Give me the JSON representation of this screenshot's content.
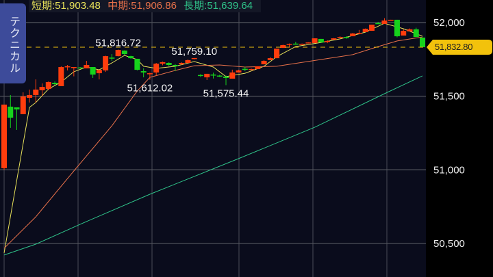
{
  "side_tab": {
    "label": "テクニカル"
  },
  "legend": {
    "short": {
      "label": "短期:51,903.48",
      "color": "#e8e25a"
    },
    "mid": {
      "label": "中期:51,906.86",
      "color": "#e8714a"
    },
    "long": {
      "label": "長期:51,639.64",
      "color": "#2fc48a"
    }
  },
  "last_price": {
    "label": "51,832.80",
    "value": 51832.8,
    "color": "#f2c20c"
  },
  "chart_data": {
    "type": "candlestick",
    "up_color": "#ff3d0d",
    "down_color": "#16d21c",
    "grid": true,
    "y_axis": {
      "position": "right",
      "ticks": [
        52000,
        51500,
        51000,
        50500
      ],
      "tick_labels": [
        "52,000",
        "51,500",
        "51,000",
        "50,500"
      ]
    },
    "candles": [
      {
        "o": 51011,
        "h": 51443,
        "l": 51001,
        "c": 51443
      },
      {
        "o": 51429,
        "h": 51508,
        "l": 51285,
        "c": 51354
      },
      {
        "o": 51424,
        "h": 51424,
        "l": 51271,
        "c": 51410
      },
      {
        "o": 51378,
        "h": 51526,
        "l": 51378,
        "c": 51498
      },
      {
        "o": 51489,
        "h": 51545,
        "l": 51457,
        "c": 51508
      },
      {
        "o": 51508,
        "h": 51614,
        "l": 51457,
        "c": 51545
      },
      {
        "o": 51540,
        "h": 51587,
        "l": 51500,
        "c": 51563
      },
      {
        "o": 51549,
        "h": 51600,
        "l": 51540,
        "c": 51596
      },
      {
        "o": 51591,
        "h": 51600,
        "l": 51575,
        "c": 51582
      },
      {
        "o": 51568,
        "h": 51703,
        "l": 51568,
        "c": 51698
      },
      {
        "o": 51700,
        "h": 51712,
        "l": 51675,
        "c": 51703
      },
      {
        "o": 51696,
        "h": 51698,
        "l": 51635,
        "c": 51698
      },
      {
        "o": 51695,
        "h": 51698,
        "l": 51690,
        "c": 51692
      },
      {
        "o": 51689,
        "h": 51740,
        "l": 51689,
        "c": 51712
      },
      {
        "o": 51698,
        "h": 51698,
        "l": 51624,
        "c": 51647
      },
      {
        "o": 51656,
        "h": 51679,
        "l": 51614,
        "c": 51679
      },
      {
        "o": 51675,
        "h": 51775,
        "l": 51665,
        "c": 51772
      },
      {
        "o": 51762,
        "h": 51786,
        "l": 51740,
        "c": 51758
      },
      {
        "o": 51772,
        "h": 51817,
        "l": 51770,
        "c": 51814
      },
      {
        "o": 51810,
        "h": 51812,
        "l": 51780,
        "c": 51786
      },
      {
        "o": 51772,
        "h": 51775,
        "l": 51754,
        "c": 51758
      },
      {
        "o": 51754,
        "h": 51754,
        "l": 51675,
        "c": 51679
      },
      {
        "o": 51670,
        "h": 51689,
        "l": 51628,
        "c": 51661
      },
      {
        "o": 51652,
        "h": 51660,
        "l": 51612,
        "c": 51656
      },
      {
        "o": 51661,
        "h": 51726,
        "l": 51640,
        "c": 51721
      },
      {
        "o": 51721,
        "h": 51735,
        "l": 51710,
        "c": 51731
      },
      {
        "o": 51726,
        "h": 51731,
        "l": 51705,
        "c": 51712
      },
      {
        "o": 51712,
        "h": 51717,
        "l": 51670,
        "c": 51710
      },
      {
        "o": 51717,
        "h": 51730,
        "l": 51712,
        "c": 51726
      },
      {
        "o": 51726,
        "h": 51750,
        "l": 51722,
        "c": 51745
      },
      {
        "o": 51754,
        "h": 51759,
        "l": 51750,
        "c": 51759
      },
      {
        "o": 51644,
        "h": 51650,
        "l": 51630,
        "c": 51640
      },
      {
        "o": 51628,
        "h": 51652,
        "l": 51610,
        "c": 51652
      },
      {
        "o": 51647,
        "h": 51660,
        "l": 51620,
        "c": 51642
      },
      {
        "o": 51640,
        "h": 51645,
        "l": 51630,
        "c": 51636
      },
      {
        "o": 51633,
        "h": 51640,
        "l": 51575,
        "c": 51624
      },
      {
        "o": 51619,
        "h": 51680,
        "l": 51619,
        "c": 51661
      },
      {
        "o": 51661,
        "h": 51680,
        "l": 51661,
        "c": 51675
      },
      {
        "o": 51686,
        "h": 51700,
        "l": 51670,
        "c": 51683
      },
      {
        "o": 51679,
        "h": 51688,
        "l": 51679,
        "c": 51684
      },
      {
        "o": 51684,
        "h": 51703,
        "l": 51684,
        "c": 51703
      },
      {
        "o": 51717,
        "h": 51745,
        "l": 51717,
        "c": 51740
      },
      {
        "o": 51745,
        "h": 51765,
        "l": 51745,
        "c": 51758
      },
      {
        "o": 51758,
        "h": 51823,
        "l": 51758,
        "c": 51823
      },
      {
        "o": 51828,
        "h": 51850,
        "l": 51828,
        "c": 51847
      },
      {
        "o": 51854,
        "h": 51858,
        "l": 51830,
        "c": 51856
      },
      {
        "o": 51857,
        "h": 51870,
        "l": 51850,
        "c": 51855
      },
      {
        "o": 51854,
        "h": 51858,
        "l": 51850,
        "c": 51856
      },
      {
        "o": 51861,
        "h": 51866,
        "l": 51858,
        "c": 51865
      },
      {
        "o": 51861,
        "h": 51893,
        "l": 51861,
        "c": 51893
      },
      {
        "o": 51889,
        "h": 51889,
        "l": 51865,
        "c": 51865
      },
      {
        "o": 51873,
        "h": 51880,
        "l": 51860,
        "c": 51875
      },
      {
        "o": 51884,
        "h": 51895,
        "l": 51884,
        "c": 51893
      },
      {
        "o": 51900,
        "h": 51907,
        "l": 51895,
        "c": 51902
      },
      {
        "o": 51902,
        "h": 51907,
        "l": 51890,
        "c": 51900
      },
      {
        "o": 51907,
        "h": 51930,
        "l": 51907,
        "c": 51926
      },
      {
        "o": 51928,
        "h": 51950,
        "l": 51920,
        "c": 51930
      },
      {
        "o": 51935,
        "h": 51960,
        "l": 51935,
        "c": 51958
      },
      {
        "o": 51944,
        "h": 51986,
        "l": 51944,
        "c": 51986
      },
      {
        "o": 51996,
        "h": 52005,
        "l": 51994,
        "c": 51994
      },
      {
        "o": 51991,
        "h": 52030,
        "l": 51991,
        "c": 52014
      },
      {
        "o": 52017,
        "h": 52019,
        "l": 52017,
        "c": 52019
      },
      {
        "o": 52019,
        "h": 52019,
        "l": 51900,
        "c": 51907
      },
      {
        "o": 51912,
        "h": 51955,
        "l": 51912,
        "c": 51944
      },
      {
        "o": 51940,
        "h": 51960,
        "l": 51940,
        "c": 51954
      },
      {
        "o": 51954,
        "h": 51965,
        "l": 51902,
        "c": 51902
      },
      {
        "o": 51898,
        "h": 51898,
        "l": 51833,
        "c": 51833
      }
    ],
    "moving_averages": [
      {
        "key": "short",
        "color": "#e8e25a",
        "points": [
          [
            0,
            50435
          ],
          [
            4,
            51424
          ],
          [
            5,
            51457
          ],
          [
            7,
            51549
          ],
          [
            9,
            51596
          ],
          [
            11,
            51666
          ],
          [
            13,
            51698
          ],
          [
            15,
            51679
          ],
          [
            17,
            51726
          ],
          [
            19,
            51777
          ],
          [
            21,
            51749
          ],
          [
            22,
            51703
          ],
          [
            24,
            51689
          ],
          [
            27,
            51703
          ],
          [
            30,
            51735
          ],
          [
            33,
            51698
          ],
          [
            35,
            51633
          ],
          [
            38,
            51656
          ],
          [
            41,
            51703
          ],
          [
            43,
            51768
          ],
          [
            46,
            51837
          ],
          [
            50,
            51865
          ],
          [
            53,
            51889
          ],
          [
            57,
            51935
          ],
          [
            60,
            51995
          ],
          [
            63,
            51958
          ],
          [
            66,
            51907
          ]
        ]
      },
      {
        "key": "mid",
        "color": "#e8714a",
        "points": [
          [
            0,
            50467
          ],
          [
            5,
            50681
          ],
          [
            11,
            50992
          ],
          [
            17,
            51299
          ],
          [
            21,
            51535
          ],
          [
            23,
            51628
          ],
          [
            27,
            51675
          ],
          [
            30,
            51707
          ],
          [
            34,
            51712
          ],
          [
            38,
            51698
          ],
          [
            43,
            51703
          ],
          [
            50,
            51749
          ],
          [
            55,
            51782
          ],
          [
            59,
            51837
          ],
          [
            62,
            51875
          ],
          [
            66,
            51902
          ]
        ]
      },
      {
        "key": "long",
        "color": "#2fc48a",
        "points": [
          [
            0,
            50421
          ],
          [
            5,
            50495
          ],
          [
            12,
            50630
          ],
          [
            23,
            50834
          ],
          [
            37,
            51076
          ],
          [
            49,
            51289
          ],
          [
            60,
            51517
          ],
          [
            66,
            51638
          ]
        ]
      }
    ],
    "annotations": [
      {
        "label": "51,816.72",
        "candle": 18,
        "type": "high"
      },
      {
        "label": "51,612.02",
        "candle": 23,
        "type": "low"
      },
      {
        "label": "51,759.10",
        "candle": 30,
        "type": "high"
      },
      {
        "label": "51,575.44",
        "candle": 35,
        "type": "low"
      }
    ]
  }
}
